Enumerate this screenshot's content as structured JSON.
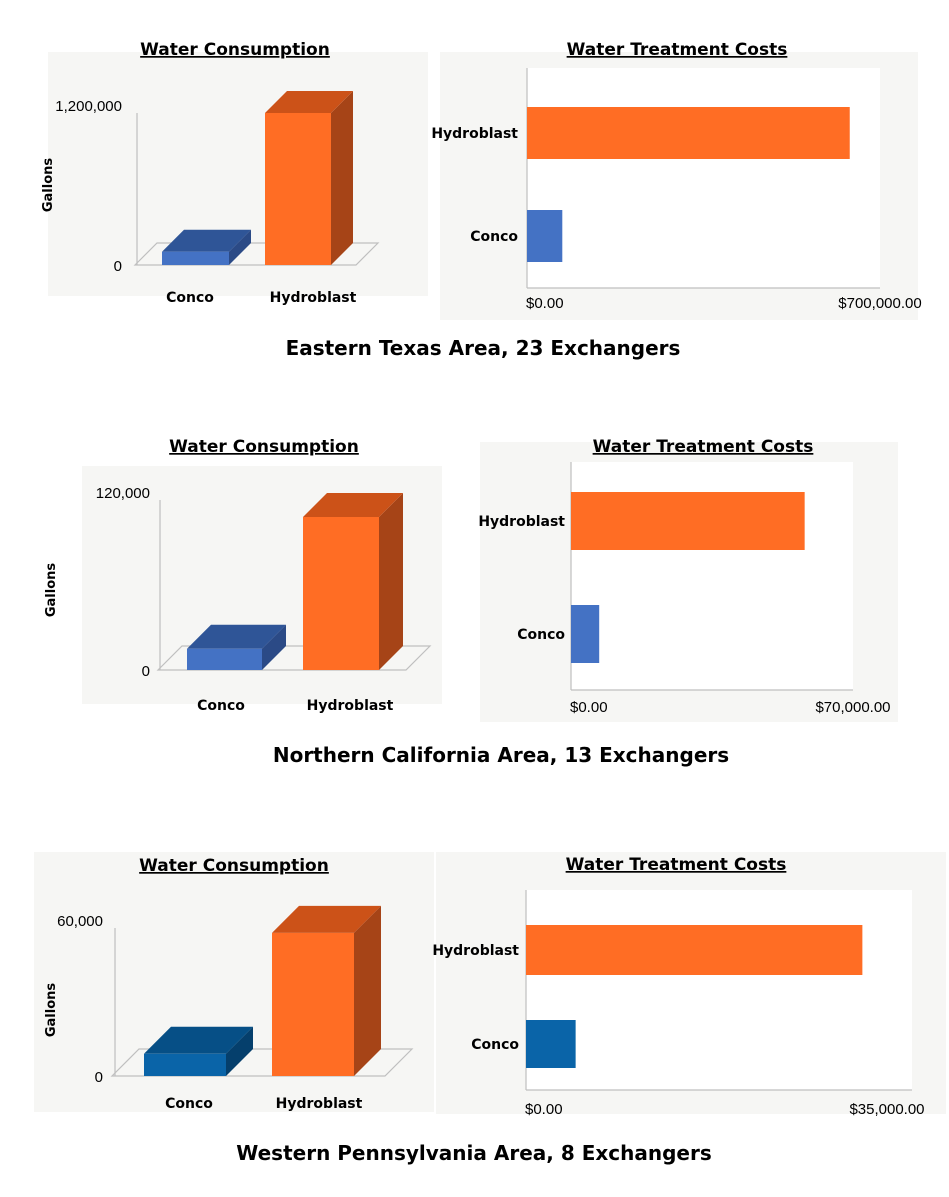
{
  "colors": {
    "hydroblast_front": "#FF6D24",
    "hydroblast_top": "#CC5218",
    "hydroblast_side": "#A64417",
    "conco_blue": "#4472C4",
    "conco_blue_top": "#2F5597",
    "conco_blue_side": "#2B4A86",
    "conco_teal": "#0A64A8",
    "conco_teal_top": "#064F86",
    "conco_teal_side": "#053F6C",
    "panel_bg": "#F6F6F4",
    "axis": "#BFBFBF"
  },
  "chart_data": [
    {
      "type": "bar",
      "section": 0,
      "subtype": "3d-column",
      "title": "Water Consumption",
      "ylabel": "Gallons",
      "categories": [
        "Conco",
        "Hydroblast"
      ],
      "values": [
        105000,
        1200000
      ],
      "ylim": [
        0,
        1200000
      ],
      "yticks": [
        "0",
        "1,200,000"
      ],
      "ytick_values": [
        0,
        1200000
      ]
    },
    {
      "type": "bar",
      "section": 0,
      "subtype": "horizontal",
      "title": "Water Treatment Costs",
      "categories": [
        "Hydroblast",
        "Conco"
      ],
      "values": [
        640000,
        70000
      ],
      "xlim": [
        0,
        700000
      ],
      "xticks": [
        "$0.00",
        "$700,000.00"
      ],
      "xtick_values": [
        0,
        700000
      ]
    },
    {
      "type": "bar",
      "section": 1,
      "subtype": "3d-column",
      "title": "Water Consumption",
      "ylabel": "Gallons",
      "categories": [
        "Conco",
        "Hydroblast"
      ],
      "values": [
        15000,
        108000
      ],
      "ylim": [
        0,
        120000
      ],
      "yticks": [
        "0",
        "120,000"
      ],
      "ytick_values": [
        0,
        120000
      ]
    },
    {
      "type": "bar",
      "section": 1,
      "subtype": "horizontal",
      "title": "Water Treatment Costs",
      "categories": [
        "Hydroblast",
        "Conco"
      ],
      "values": [
        58000,
        7000
      ],
      "xlim": [
        0,
        70000
      ],
      "xticks": [
        "$0.00",
        "$70,000.00"
      ],
      "xtick_values": [
        0,
        70000
      ]
    },
    {
      "type": "bar",
      "section": 2,
      "subtype": "3d-column",
      "title": "Water Consumption",
      "ylabel": "Gallons",
      "categories": [
        "Conco",
        "Hydroblast"
      ],
      "values": [
        9000,
        58000
      ],
      "ylim": [
        0,
        60000
      ],
      "yticks": [
        "0",
        "60,000"
      ],
      "ytick_values": [
        0,
        60000
      ]
    },
    {
      "type": "bar",
      "section": 2,
      "subtype": "horizontal",
      "title": "Water Treatment Costs",
      "categories": [
        "Hydroblast",
        "Conco"
      ],
      "values": [
        30500,
        4500
      ],
      "xlim": [
        0,
        35000
      ],
      "xticks": [
        "$0.00",
        "$35,000.00"
      ],
      "xtick_values": [
        0,
        35000
      ]
    }
  ],
  "sections": [
    {
      "caption": "Eastern Texas Area, 23 Exchangers"
    },
    {
      "caption": "Northern California Area, 13 Exchangers"
    },
    {
      "caption": "Western Pennsylvania Area, 8 Exchangers"
    }
  ]
}
